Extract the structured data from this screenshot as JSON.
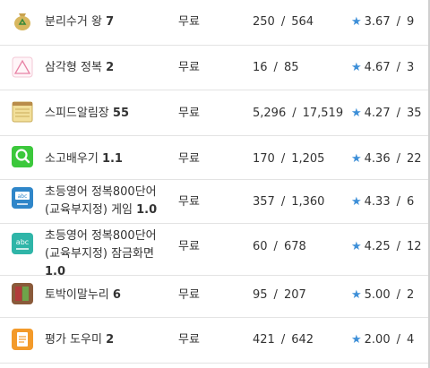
{
  "apps": [
    {
      "name": "분리수거 왕",
      "version": "7",
      "price": "무료",
      "downloads": "250",
      "reviews": "564",
      "rating": "3.67",
      "votes": "9",
      "icon": "recycle-bag-icon"
    },
    {
      "name": "삼각형 정복",
      "version": "2",
      "price": "무료",
      "downloads": "16",
      "reviews": "85",
      "rating": "4.67",
      "votes": "3",
      "icon": "triangle-icon"
    },
    {
      "name": "스피드알림장",
      "version": "55",
      "price": "무료",
      "downloads": "5,296",
      "reviews": "17,519",
      "rating": "4.27",
      "votes": "35",
      "icon": "notepad-icon"
    },
    {
      "name": "소고배우기",
      "version": "1.1",
      "price": "무료",
      "downloads": "170",
      "reviews": "1,205",
      "rating": "4.36",
      "votes": "22",
      "icon": "search-icon"
    },
    {
      "name_line1": "초등영어 정복800단어",
      "name_line2": "(교육부지정) 게임",
      "version": "1.0",
      "price": "무료",
      "downloads": "357",
      "reviews": "1,360",
      "rating": "4.33",
      "votes": "6",
      "icon": "abc-game-icon"
    },
    {
      "name_line1": "초등영어 정복800단어",
      "name_line2": "(교육부지정) 잠금화면",
      "version": "1.0",
      "price": "무료",
      "downloads": "60",
      "reviews": "678",
      "rating": "4.25",
      "votes": "12",
      "icon": "abc-lock-icon"
    },
    {
      "name": "토박이말누리",
      "version": "6",
      "price": "무료",
      "downloads": "95",
      "reviews": "207",
      "rating": "5.00",
      "votes": "2",
      "icon": "book-icon"
    },
    {
      "name": "평가 도우미",
      "version": "2",
      "price": "무료",
      "downloads": "421",
      "reviews": "642",
      "rating": "2.00",
      "votes": "4",
      "icon": "document-icon"
    }
  ],
  "labels": {
    "slash": "/",
    "star": "★"
  }
}
